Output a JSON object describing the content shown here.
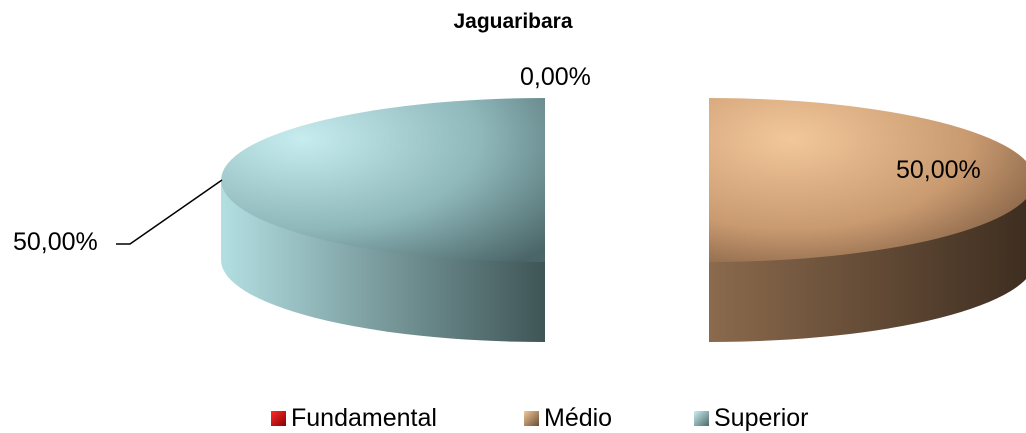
{
  "chart_data": {
    "type": "pie",
    "title_lines": [
      "Jaguaribara"
    ],
    "categories": [
      "Fundamental",
      "Médio",
      "Superior"
    ],
    "values": [
      0.0,
      50.0,
      50.0
    ],
    "data_labels": [
      "0,00%",
      "50,00%",
      "50,00%"
    ],
    "legend_position": "bottom",
    "style": "3d-exploded",
    "colors": {
      "Fundamental": "#c00000",
      "Médio": "#e6b98a",
      "Superior": "#b4e0e4"
    }
  }
}
